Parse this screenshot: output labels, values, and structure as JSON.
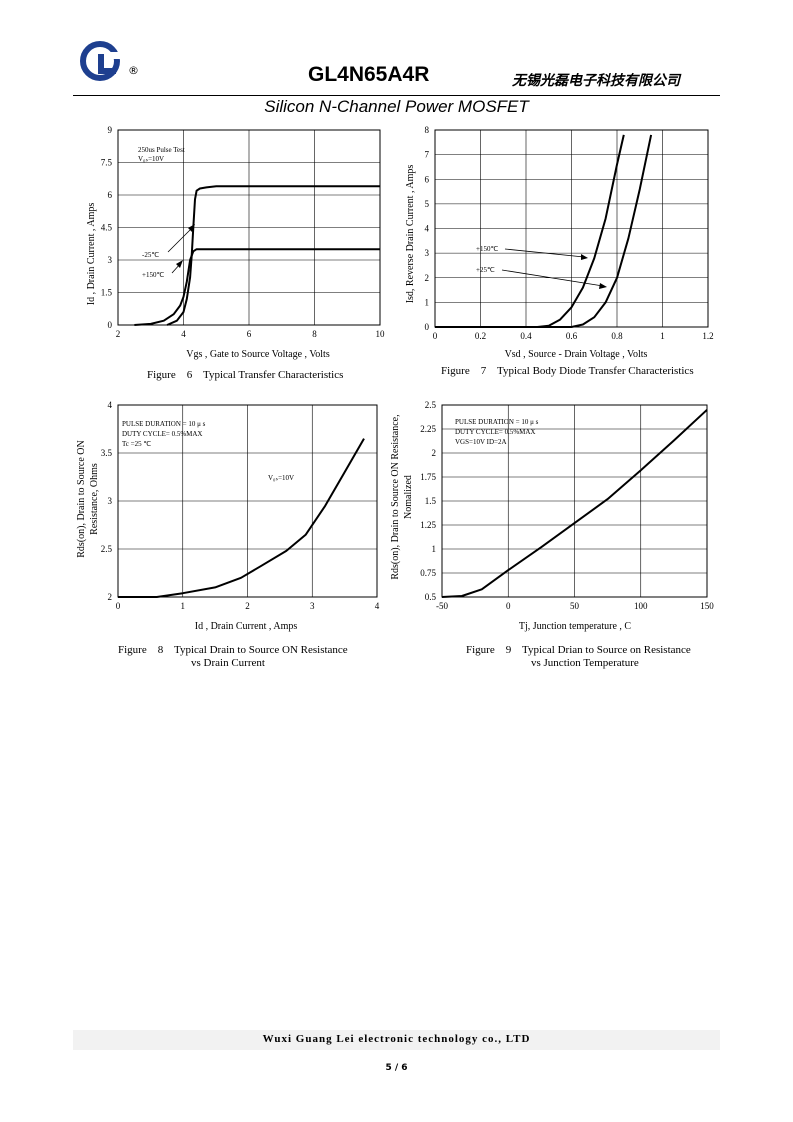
{
  "header": {
    "logo_icon": "gl-logo-icon",
    "registered_mark": "®",
    "part_number": "GL4N65A4R",
    "company_cn": "无锡光磊电子科技有限公司",
    "subtitle": "Silicon N-Channel Power MOSFET",
    "logo_color": "#1e3f8f"
  },
  "figures": {
    "fig6": {
      "caption": "Figure    6    Typical Transfer Characteristics",
      "ylabel": "Id , Drain Current , Amps",
      "xlabel": "Vgs , Gate to Source Voltage , Volts",
      "note1": "250us Pulse Test",
      "note2": "V₀ₛ=10V",
      "label_a": "-25℃",
      "label_b": "+150℃"
    },
    "fig7": {
      "caption": "Figure    7    Typical Body Diode Transfer Characteristics",
      "ylabel": "Isd, Reverse Drain Current , Amps",
      "xlabel": "Vsd , Source - Drain Voltage , Volts",
      "label_a": "+150℃",
      "label_b": "+25℃"
    },
    "fig8": {
      "caption_line1": "Figure    8    Typical Drain to Source ON Resistance",
      "caption_line2": "vs Drain Current",
      "ylabel1": "Rds(on), Drain to Source ON",
      "ylabel2": "Resistance, Ohms",
      "xlabel": "Id , Drain Current , Amps",
      "note1": "PULSE    DURATION = 10 μ s",
      "note2": "DUTY    CYCLE= 0.5%MAX",
      "note3": "Tc =25  ℃",
      "label_a": "V₀ₛ=10V"
    },
    "fig9": {
      "caption_line1": "Figure    9    Typical Drian to Source on Resistance",
      "caption_line2": "vs Junction Temperature",
      "ylabel1": "Rds(on), Drain to Source ON  Resistance,",
      "ylabel2": "Nomalized",
      "xlabel": "Tj, Junction temperature , C",
      "note1": "PULSE    DURATION = 10 μ s",
      "note2": "DUTY    CYCLE= 0.5%MAX",
      "note3": "VGS=10V    ID=2A"
    }
  },
  "chart_data": [
    {
      "type": "line",
      "title": "Figure 6 Typical Transfer Characteristics",
      "xlabel": "Vgs , Gate to Source Voltage , Volts",
      "ylabel": "Id , Drain Current , Amps",
      "xlim": [
        2,
        10
      ],
      "ylim": [
        0,
        9
      ],
      "xticks": [
        2,
        4,
        6,
        8,
        10
      ],
      "yticks": [
        0,
        1.5,
        3,
        4.5,
        6,
        7.5,
        9
      ],
      "ytick_labels": [
        "0",
        "1.5",
        "3",
        "4.5",
        "6",
        "7.5",
        "9"
      ],
      "grid": true,
      "series": [
        {
          "name": "-25℃",
          "x": [
            2.5,
            3.0,
            3.4,
            3.7,
            3.9,
            4.0,
            4.1,
            4.2,
            4.3,
            4.4,
            4.5,
            4.7,
            5.0,
            6.0,
            8.0,
            10.0
          ],
          "y": [
            0,
            0.05,
            0.2,
            0.5,
            0.9,
            1.3,
            2.0,
            3.0,
            3.4,
            3.5,
            3.5,
            3.5,
            3.5,
            3.5,
            3.5,
            3.5
          ]
        },
        {
          "name": "+150℃",
          "x": [
            3.5,
            3.8,
            4.0,
            4.1,
            4.2,
            4.25,
            4.3,
            4.35,
            4.4,
            4.5,
            4.7,
            5.0,
            6.0,
            8.0,
            10.0
          ],
          "y": [
            0,
            0.2,
            0.6,
            1.2,
            2.2,
            3.2,
            4.5,
            5.8,
            6.2,
            6.3,
            6.35,
            6.4,
            6.4,
            6.4,
            6.4
          ]
        }
      ]
    },
    {
      "type": "line",
      "title": "Figure 7 Typical Body Diode Transfer Characteristics",
      "xlabel": "Vsd , Source - Drain Voltage , Volts",
      "ylabel": "Isd, Reverse Drain Current , Amps",
      "xlim": [
        0,
        1.2
      ],
      "ylim": [
        0,
        8
      ],
      "xticks": [
        0,
        0.2,
        0.4,
        0.6,
        0.8,
        1.0,
        1.2
      ],
      "xtick_labels": [
        "0",
        "0.2",
        "0.4",
        "0.6",
        "0.8",
        "1",
        "1.2"
      ],
      "yticks": [
        0,
        1,
        2,
        3,
        4,
        5,
        6,
        7,
        8
      ],
      "grid": true,
      "series": [
        {
          "name": "+150℃",
          "x": [
            0,
            0.45,
            0.5,
            0.55,
            0.6,
            0.65,
            0.7,
            0.75,
            0.8,
            0.83
          ],
          "y": [
            0,
            0,
            0.05,
            0.3,
            0.8,
            1.6,
            2.8,
            4.4,
            6.6,
            7.8
          ]
        },
        {
          "name": "+25℃",
          "x": [
            0,
            0.6,
            0.65,
            0.7,
            0.75,
            0.8,
            0.85,
            0.9,
            0.95
          ],
          "y": [
            0,
            0,
            0.1,
            0.4,
            1.0,
            2.0,
            3.6,
            5.6,
            7.8
          ]
        }
      ]
    },
    {
      "type": "line",
      "title": "Figure 8 Typical Drain to Source ON Resistance vs Drain Current",
      "xlabel": "Id , Drain Current , Amps",
      "ylabel": "Rds(on), Drain to Source ON Resistance, Ohms",
      "xlim": [
        0,
        4
      ],
      "ylim": [
        2,
        4
      ],
      "xticks": [
        0,
        1,
        2,
        3,
        4
      ],
      "yticks": [
        2,
        2.5,
        3,
        3.5,
        4
      ],
      "grid": true,
      "series": [
        {
          "name": "V₀ₛ=10V",
          "x": [
            0,
            0.6,
            1.0,
            1.5,
            1.9,
            2.2,
            2.6,
            2.9,
            3.2,
            3.5,
            3.8
          ],
          "y": [
            2.0,
            2.0,
            2.04,
            2.1,
            2.2,
            2.32,
            2.48,
            2.65,
            2.95,
            3.3,
            3.65
          ]
        }
      ]
    },
    {
      "type": "line",
      "title": "Figure 9 Typical Drian to Source on Resistance vs Junction Temperature",
      "xlabel": "Tj, Junction temperature , C",
      "ylabel": "Rds(on), Drain to Source ON Resistance, Nomalized",
      "xlim": [
        -50,
        150
      ],
      "ylim": [
        0.5,
        2.5
      ],
      "xticks": [
        -50,
        0,
        50,
        100,
        150
      ],
      "yticks": [
        0.5,
        0.75,
        1,
        1.25,
        1.5,
        1.75,
        2,
        2.25,
        2.5
      ],
      "grid": true,
      "series": [
        {
          "name": "Rds(on)",
          "x": [
            -50,
            -35,
            -20,
            0,
            25,
            50,
            75,
            100,
            125,
            150
          ],
          "y": [
            0.5,
            0.51,
            0.58,
            0.78,
            1.02,
            1.27,
            1.52,
            1.82,
            2.13,
            2.45
          ]
        }
      ]
    }
  ],
  "footer": {
    "company_en": "Wuxi Guang Lei electronic technology co., LTD",
    "page": "5 / 6"
  }
}
